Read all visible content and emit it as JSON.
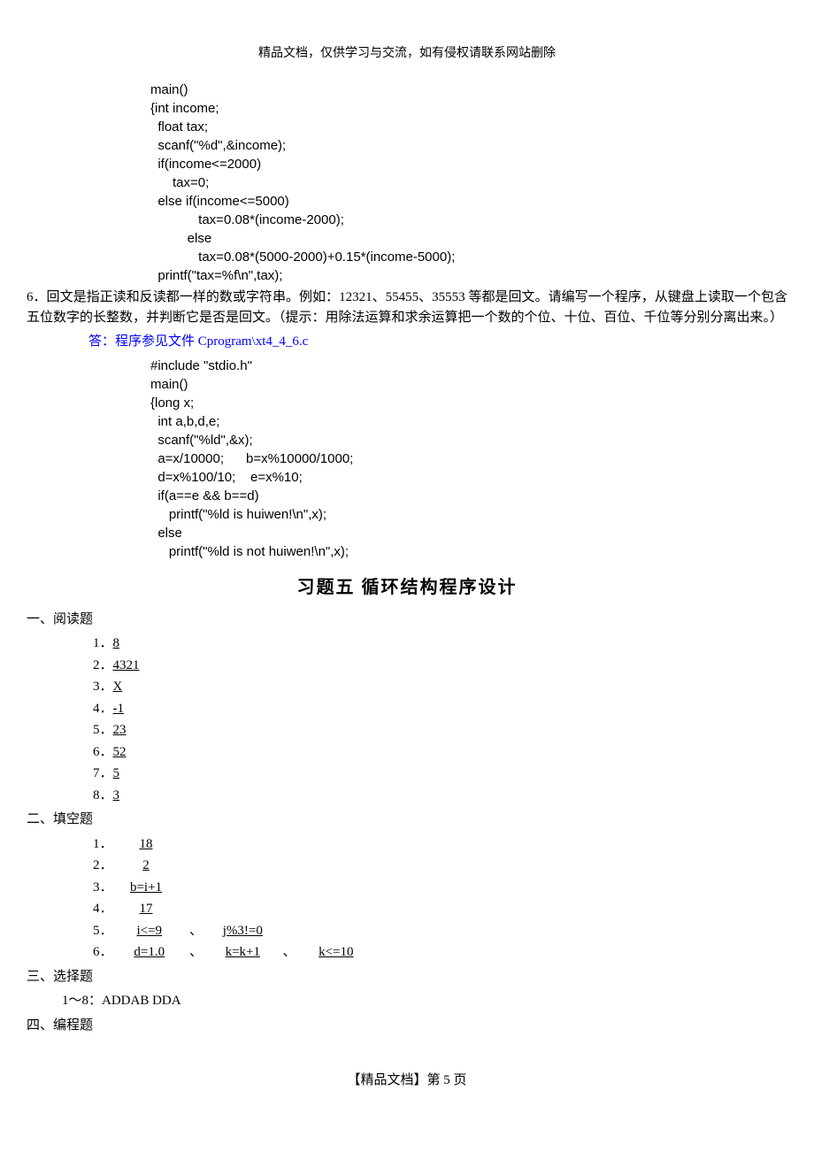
{
  "header": {
    "note": "精品文档，仅供学习与交流，如有侵权请联系网站删除"
  },
  "code1": {
    "lines": "main()\n{int income;\n  float tax;\n  scanf(\"%d\",&income);\n  if(income<=2000)\n      tax=0;\n  else if(income<=5000)\n             tax=0.08*(income-2000);\n          else\n             tax=0.08*(5000-2000)+0.15*(income-5000);\n  printf(\"tax=%f\\n\",tax);"
  },
  "q6": {
    "text": "6．回文是指正读和反读都一样的数或字符串。例如：12321、55455、35553 等都是回文。请编写一个程序，从键盘上读取一个包含五位数字的长整数，并判断它是否是回文。（提示：用除法运算和求余运算把一个数的个位、十位、百位、千位等分别分离出来。）",
    "answer": "答：程序参见文件 Cprogram\\xt4_4_6.c"
  },
  "code2": {
    "lines": "#include \"stdio.h\"\nmain()\n{long x;\n  int a,b,d,e;\n  scanf(\"%ld\",&x);\n  a=x/10000;      b=x%10000/1000;\n  d=x%100/10;    e=x%10;\n  if(a==e && b==d)\n     printf(\"%ld is huiwen!\\n\",x);\n  else\n     printf(\"%ld is not huiwen!\\n\",x);"
  },
  "title5": "习题五    循环结构程序设计",
  "reading": {
    "header": "一、阅读题",
    "items": [
      {
        "num": "1．",
        "ans": "8"
      },
      {
        "num": "2．",
        "ans": "4321"
      },
      {
        "num": "3．",
        "ans": "X"
      },
      {
        "num": "4．",
        "ans": "-1"
      },
      {
        "num": "5．",
        "ans": "23"
      },
      {
        "num": "6．",
        "ans": "52"
      },
      {
        "num": "7．",
        "ans": "5"
      },
      {
        "num": "8．",
        "ans": "3"
      }
    ]
  },
  "fill": {
    "header": "二、填空题",
    "items": [
      {
        "num": "1．",
        "ans": [
          "18"
        ]
      },
      {
        "num": "2．",
        "ans": [
          "2"
        ]
      },
      {
        "num": "3．",
        "ans": [
          "b=i+1"
        ]
      },
      {
        "num": "4．",
        "ans": [
          "17"
        ]
      },
      {
        "num": "5．",
        "ans": [
          "i<=9",
          "j%3!=0"
        ]
      },
      {
        "num": "6．",
        "ans": [
          "d=1.0",
          "k=k+1",
          "k<=10"
        ]
      }
    ]
  },
  "choice": {
    "header": "三、选择题",
    "line": "1～8：ADDAB     DDA"
  },
  "prog": {
    "header": "四、编程题"
  },
  "footer": {
    "text": "【精品文档】第 5 页"
  },
  "sep_char": "、"
}
